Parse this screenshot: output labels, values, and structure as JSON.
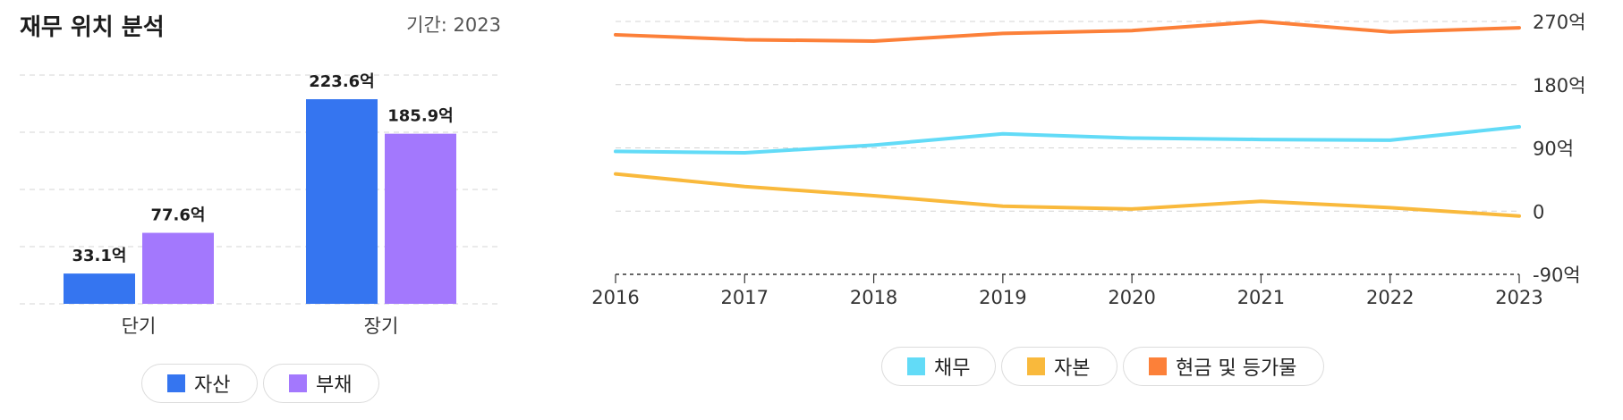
{
  "left_panel": {
    "title": "재무 위치 분석",
    "period_label": "기간: 2023",
    "legend": [
      {
        "label": "자산",
        "color": "#3575f0"
      },
      {
        "label": "부채",
        "color": "#a378fd"
      }
    ]
  },
  "right_panel": {
    "legend": [
      {
        "label": "채무",
        "color": "#62dbf7"
      },
      {
        "label": "자본",
        "color": "#f9b93c"
      },
      {
        "label": "현금 및 등가물",
        "color": "#fc8039"
      }
    ]
  },
  "chart_data": [
    {
      "type": "bar",
      "title": "재무 위치 분석",
      "categories": [
        "단기",
        "장기"
      ],
      "series": [
        {
          "name": "자산",
          "values": [
            33.1,
            223.6
          ],
          "labels": [
            "33.1억",
            "223.6억"
          ]
        },
        {
          "name": "부채",
          "values": [
            77.6,
            185.9
          ],
          "labels": [
            "77.6억",
            "185.9억"
          ]
        }
      ],
      "ylim": [
        0,
        250
      ],
      "grid": true,
      "legend_position": "bottom"
    },
    {
      "type": "line",
      "x": [
        "2016",
        "2017",
        "2018",
        "2019",
        "2020",
        "2021",
        "2022",
        "2023"
      ],
      "series": [
        {
          "name": "채무",
          "values": [
            85,
            83,
            94,
            110,
            104,
            102,
            101,
            120
          ]
        },
        {
          "name": "자본",
          "values": [
            53,
            35,
            22,
            7,
            3,
            14,
            5,
            -7
          ]
        },
        {
          "name": "현금 및 등가물",
          "values": [
            251,
            244,
            242,
            253,
            257,
            270,
            255,
            261
          ]
        }
      ],
      "yticks": [
        "270억",
        "180억",
        "90억",
        "0",
        "-90억"
      ],
      "ylim": [
        -90,
        270
      ],
      "grid": true,
      "y_axis_side": "right",
      "legend_position": "bottom"
    }
  ]
}
